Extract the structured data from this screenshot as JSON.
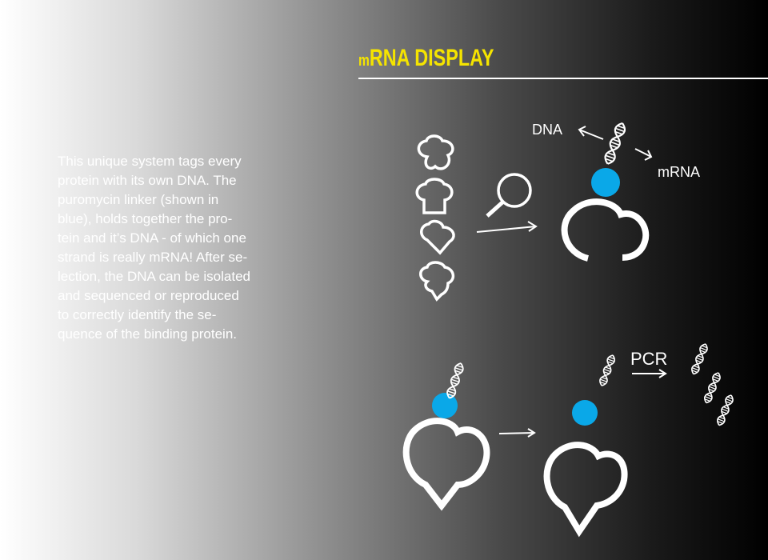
{
  "title": {
    "prefix": "m",
    "main": "RNA DISPLAY"
  },
  "description": "This unique system tags every\nprotein with its own DNA. The\npuromycin linker (shown in\nblue), holds together the pro-\ntein and it’s DNA - of which one\nstrand is really mRNA! After se-\nlection, the DNA can be isolated\nand sequenced or reproduced\nto correctly identify the se-\nquence of the binding protein.",
  "labels": {
    "dna": "DNA",
    "mrna": "mRNA",
    "pcr": "PCR"
  },
  "colors": {
    "title": "#f5e400",
    "linker": "#0aa8e8",
    "line": "#ffffff"
  }
}
